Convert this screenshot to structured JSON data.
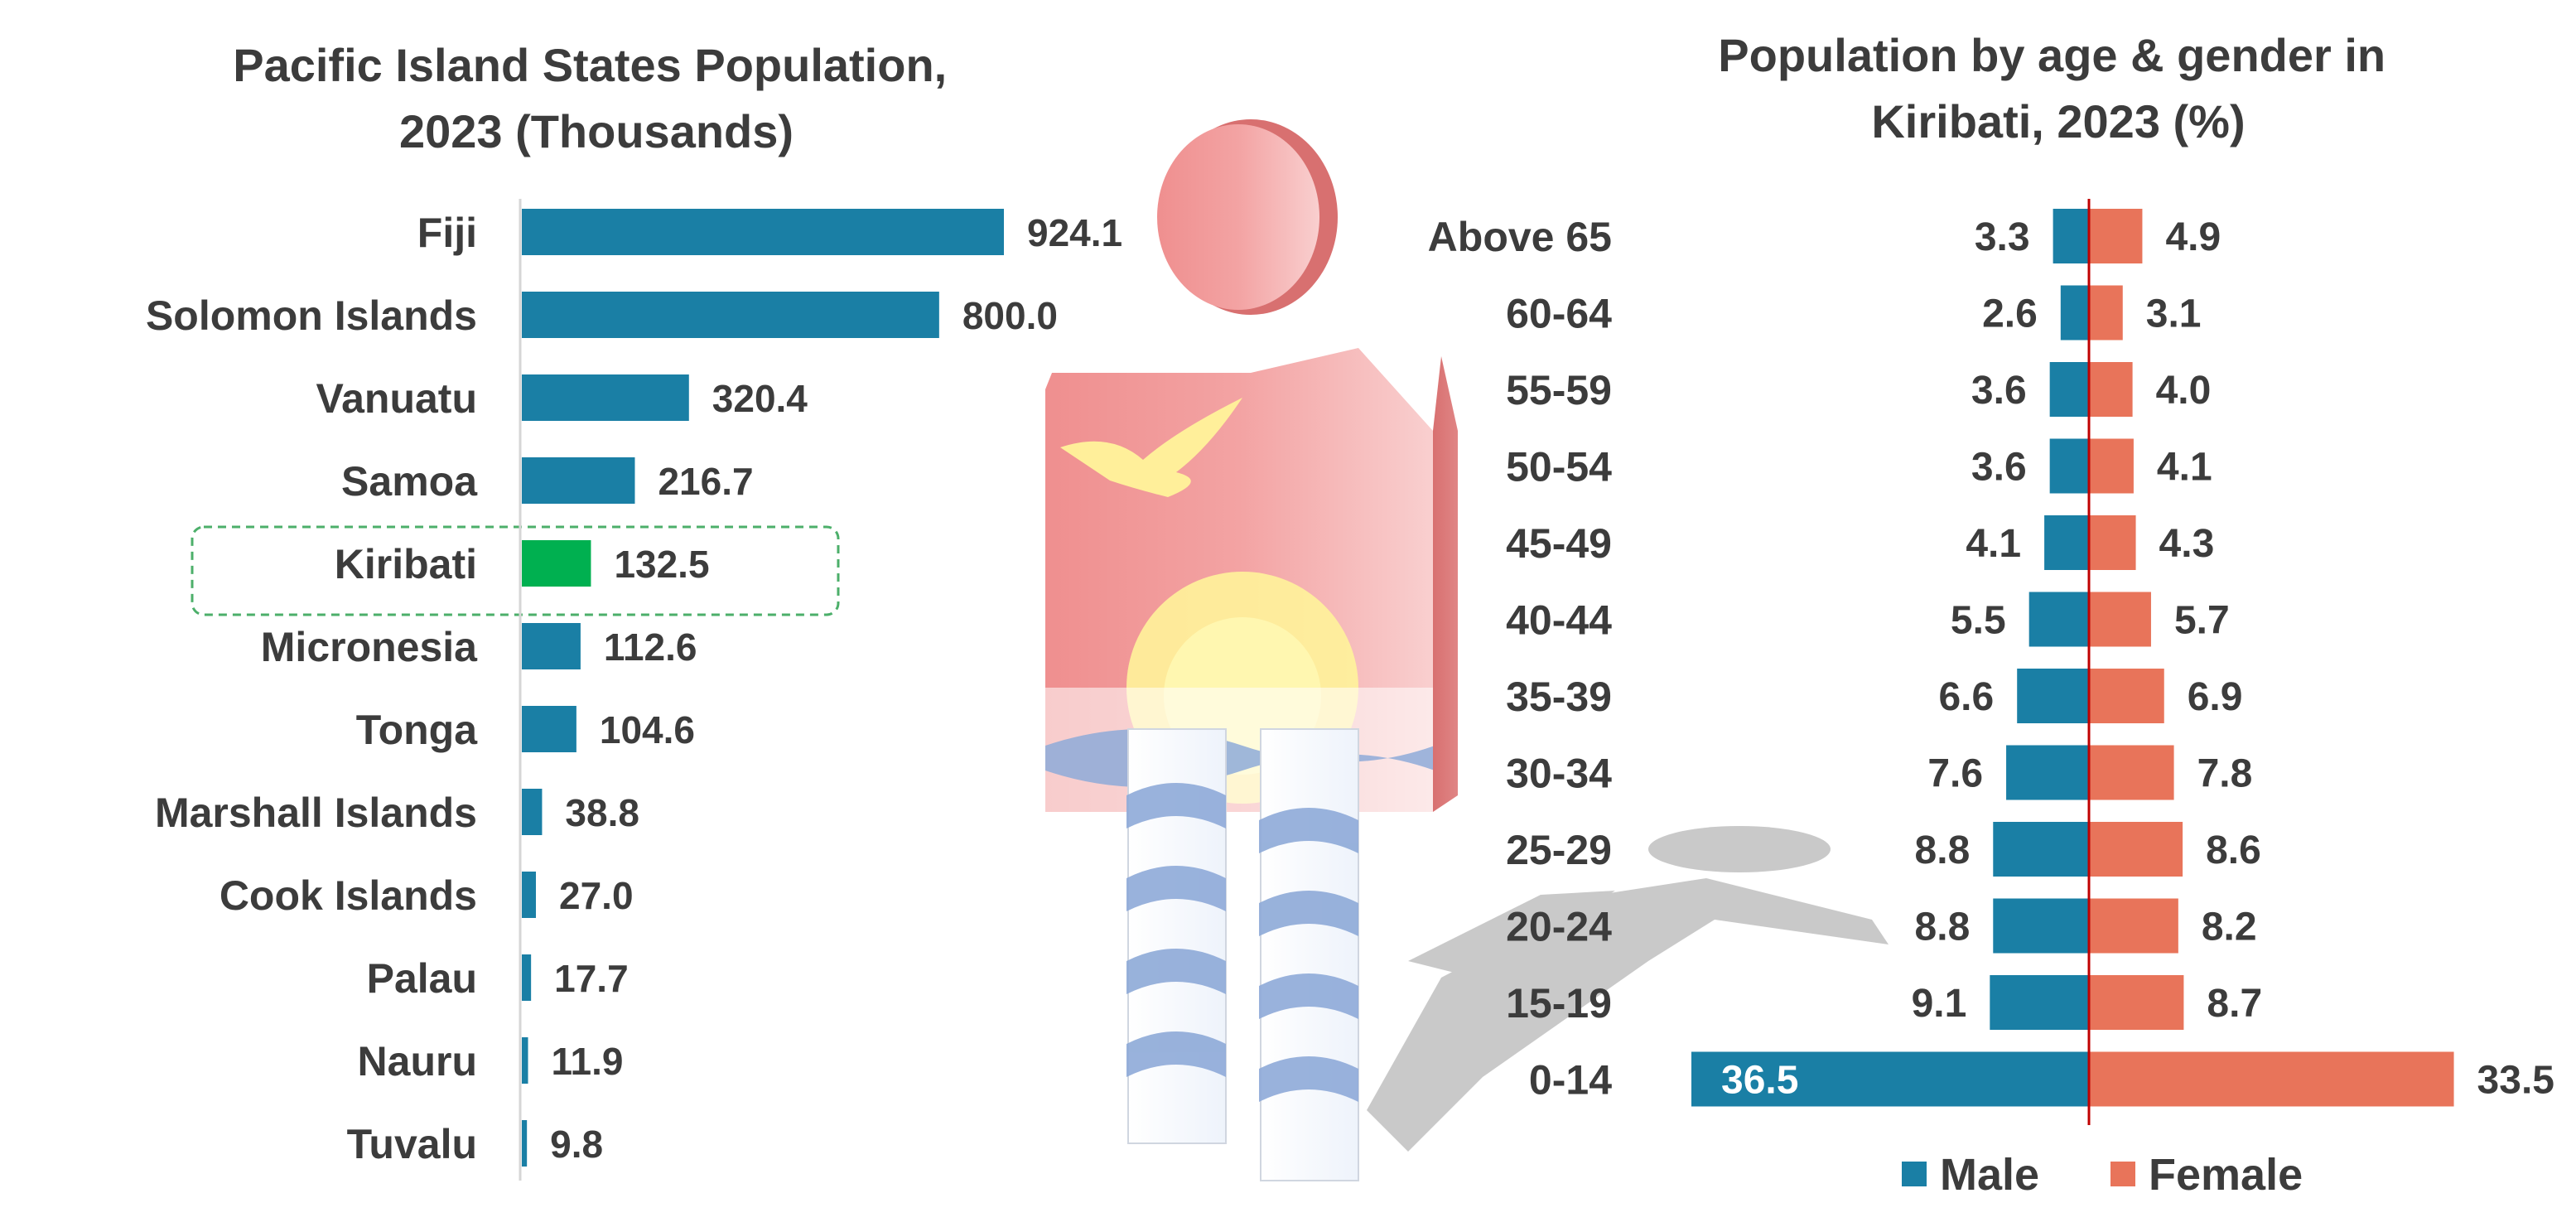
{
  "colors": {
    "bar": "#1a7fa5",
    "highlight": "#00b050",
    "male": "#1a7fa5",
    "female": "#e8745a",
    "text": "#3c3c3c",
    "center_line": "#c00000",
    "highlight_box": "#4caf6a",
    "figure_red": "#ef8a8a",
    "figure_blue": "#8eaad8",
    "figure_yellow": "#fff39a",
    "shadow": "#c9c9c9"
  },
  "decoration": {
    "icon": "kiribati-flag-person-figure-icon"
  },
  "chart_data": [
    {
      "type": "bar",
      "orientation": "horizontal",
      "title": "Pacific Island States Population, 2023 (Thousands)",
      "title_lines": [
        "Pacific Island States Population,",
        "2023 (Thousands)"
      ],
      "categories": [
        "Fiji",
        "Solomon Islands",
        "Vanuatu",
        "Samoa",
        "Kiribati",
        "Micronesia",
        "Tonga",
        "Marshall Islands",
        "Cook Islands",
        "Palau",
        "Nauru",
        "Tuvalu"
      ],
      "values": [
        924.1,
        800.0,
        320.4,
        216.7,
        132.5,
        112.6,
        104.6,
        38.8,
        27.0,
        17.7,
        11.9,
        9.8
      ],
      "value_labels": [
        "924.1",
        "800.0",
        "320.4",
        "216.7",
        "132.5",
        "112.6",
        "104.6",
        "38.8",
        "27.0",
        "17.7",
        "11.9",
        "9.8"
      ],
      "highlight": "Kiribati",
      "xlim": [
        0,
        924.1
      ],
      "grid": false,
      "legend": "none"
    },
    {
      "type": "bar",
      "orientation": "horizontal-diverging",
      "title": "Population by age & gender in Kiribati, 2023 (%)",
      "title_lines": [
        "Population by age & gender in",
        "Kiribati, 2023 (%)"
      ],
      "categories": [
        "Above 65",
        "60-64",
        "55-59",
        "50-54",
        "45-49",
        "40-44",
        "35-39",
        "30-34",
        "25-29",
        "20-24",
        "15-19",
        "0-14"
      ],
      "series": [
        {
          "name": "Male",
          "values": [
            3.3,
            2.6,
            3.6,
            3.6,
            4.1,
            5.5,
            6.6,
            7.6,
            8.8,
            8.8,
            9.1,
            36.5
          ],
          "labels": [
            "3.3",
            "2.6",
            "3.6",
            "3.6",
            "4.1",
            "5.5",
            "6.6",
            "7.6",
            "8.8",
            "8.8",
            "9.1",
            "36.5"
          ]
        },
        {
          "name": "Female",
          "values": [
            4.9,
            3.1,
            4.0,
            4.1,
            4.3,
            5.7,
            6.9,
            7.8,
            8.6,
            8.2,
            8.7,
            33.5
          ],
          "labels": [
            "4.9",
            "3.1",
            "4.0",
            "4.1",
            "4.3",
            "5.7",
            "6.9",
            "7.8",
            "8.6",
            "8.2",
            "8.7",
            "33.5"
          ]
        }
      ],
      "xlim": [
        -36.5,
        33.5
      ],
      "grid": false,
      "legend": "bottom"
    }
  ]
}
